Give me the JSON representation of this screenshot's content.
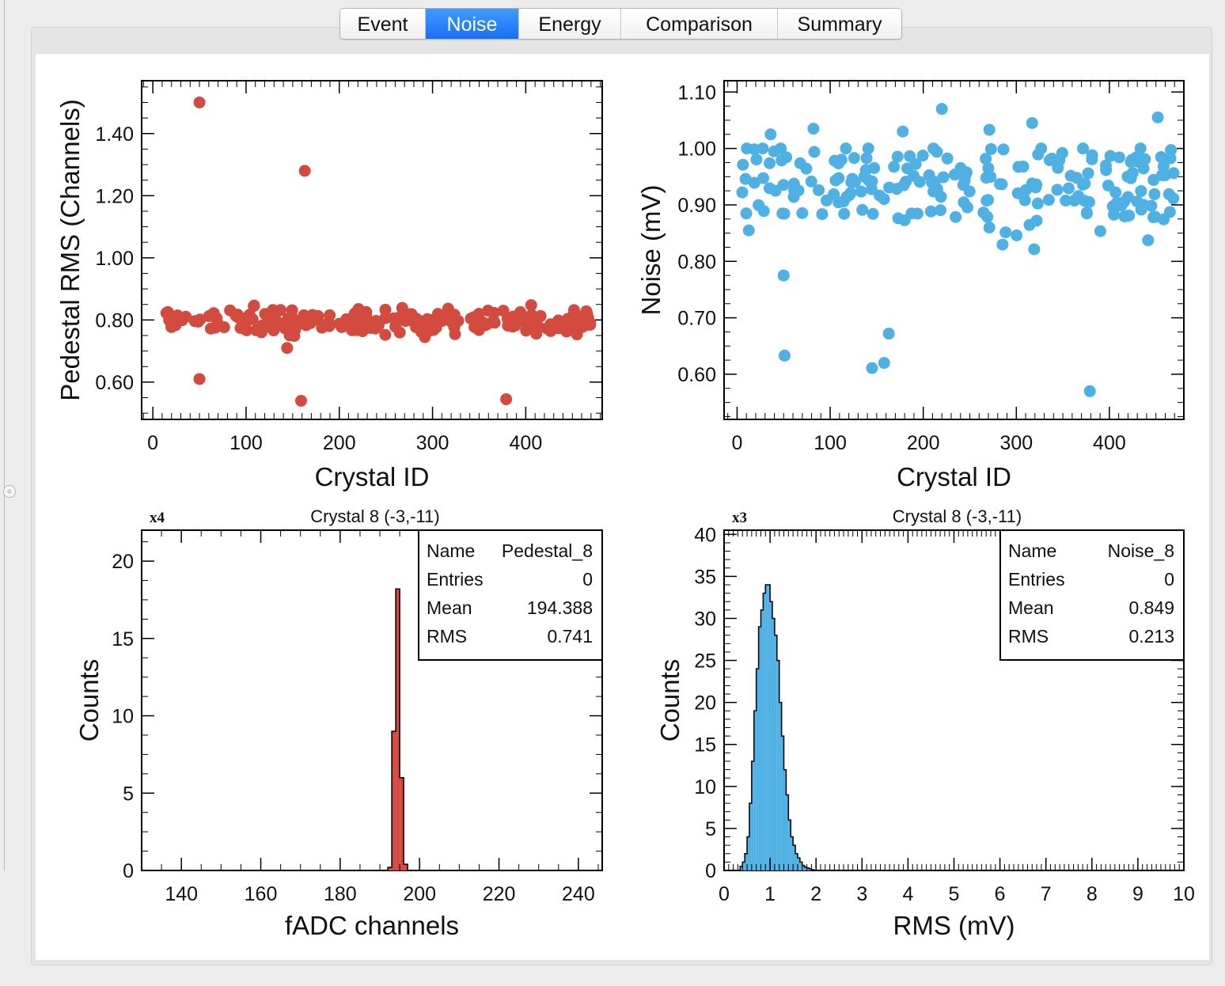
{
  "tabs": [
    {
      "label": "Event",
      "active": false
    },
    {
      "label": "Noise",
      "active": true
    },
    {
      "label": "Energy",
      "active": false
    },
    {
      "label": "Comparison",
      "active": false
    },
    {
      "label": "Summary",
      "active": false
    }
  ],
  "colors": {
    "red": "#d34a3f",
    "blue": "#4eb0e3",
    "active_tab": "#1b6ef5"
  },
  "chart_data": [
    {
      "id": "pedestal-scatter",
      "type": "scatter",
      "xlabel": "Crystal ID",
      "ylabel": "Pedestal RMS (Channels)",
      "xlim": [
        -12,
        482
      ],
      "ylim": [
        0.48,
        1.57
      ],
      "xticks": [
        "0",
        "100",
        "200",
        "300",
        "400"
      ],
      "yticks": [
        "0.60",
        "0.80",
        "1.00",
        "1.20",
        "1.40"
      ],
      "marker_color": "#d34a3f",
      "outliers": [
        [
          50,
          1.5
        ],
        [
          163,
          1.28
        ],
        [
          144,
          0.71
        ],
        [
          50,
          0.61
        ],
        [
          159,
          0.54
        ],
        [
          379,
          0.545
        ]
      ],
      "band_mean": 0.795,
      "band_spread": 0.024,
      "band_range": [
        8,
        472
      ]
    },
    {
      "id": "noise-scatter",
      "type": "scatter",
      "xlabel": "Crystal ID",
      "ylabel": "Noise (mV)",
      "xlim": [
        -14,
        480
      ],
      "ylim": [
        0.52,
        1.12
      ],
      "xticks": [
        "0",
        "100",
        "200",
        "300",
        "400"
      ],
      "yticks": [
        "0.60",
        "0.70",
        "0.80",
        "0.90",
        "1.00",
        "1.10"
      ],
      "marker_color": "#4eb0e3",
      "outliers": [
        [
          50,
          0.775
        ],
        [
          51,
          0.633
        ],
        [
          145,
          0.611
        ],
        [
          158,
          0.62
        ],
        [
          163,
          0.672
        ],
        [
          379,
          0.57
        ],
        [
          220,
          1.07
        ],
        [
          452,
          1.055
        ],
        [
          317,
          1.045
        ],
        [
          82,
          1.035
        ],
        [
          36,
          1.025
        ],
        [
          271,
          1.033
        ],
        [
          178,
          1.03
        ]
      ],
      "band_mean": 0.93,
      "band_spread": 0.042,
      "band_range": [
        5,
        472
      ]
    },
    {
      "id": "pedestal-hist",
      "type": "bar",
      "title": "Crystal 8 (-3,-11)",
      "multiplier": "x4",
      "xlabel": "fADC channels",
      "ylabel": "Counts",
      "xlim": [
        130,
        246
      ],
      "ylim": [
        0,
        22
      ],
      "xticks": [
        "140",
        "160",
        "180",
        "200",
        "220",
        "240"
      ],
      "yticks": [
        "0",
        "5",
        "10",
        "15",
        "20"
      ],
      "fill_color": "#d34a3f",
      "bins": [
        [
          192,
          193,
          0.2
        ],
        [
          193,
          194,
          9.0
        ],
        [
          194,
          195,
          18.2
        ],
        [
          195,
          196,
          6.0
        ],
        [
          196,
          197,
          0.4
        ]
      ],
      "stats": {
        "name_label": "Name",
        "name_value": "Pedestal_8",
        "entries_label": "Entries",
        "entries_value": "0",
        "mean_label": "Mean",
        "mean_value": "194.388",
        "rms_label": "RMS",
        "rms_value": "0.741"
      }
    },
    {
      "id": "noise-hist",
      "type": "bar",
      "title": "Crystal 8 (-3,-11)",
      "multiplier": "x3",
      "xlabel": "RMS (mV)",
      "ylabel": "Counts",
      "xlim": [
        0,
        10
      ],
      "ylim": [
        0,
        40.5
      ],
      "xticks": [
        "0",
        "1",
        "2",
        "3",
        "4",
        "5",
        "6",
        "7",
        "8",
        "9",
        "10"
      ],
      "yticks": [
        "0",
        "5",
        "10",
        "15",
        "20",
        "25",
        "30",
        "35",
        "40"
      ],
      "fill_color": "#4eb0e3",
      "bin_start": 0.35,
      "bin_width": 0.05,
      "counts": [
        0.5,
        1,
        2,
        4,
        8,
        13,
        19,
        24,
        29,
        31,
        33,
        34,
        34,
        32,
        30,
        28,
        25,
        20,
        16,
        12,
        9,
        6,
        4,
        3,
        2,
        1.5,
        1,
        0.6,
        0.4,
        0.3,
        0.2,
        0.1
      ],
      "stats": {
        "name_label": "Name",
        "name_value": "Noise_8",
        "entries_label": "Entries",
        "entries_value": "0",
        "mean_label": "Mean",
        "mean_value": "0.849",
        "rms_label": "RMS",
        "rms_value": "0.213"
      }
    }
  ]
}
